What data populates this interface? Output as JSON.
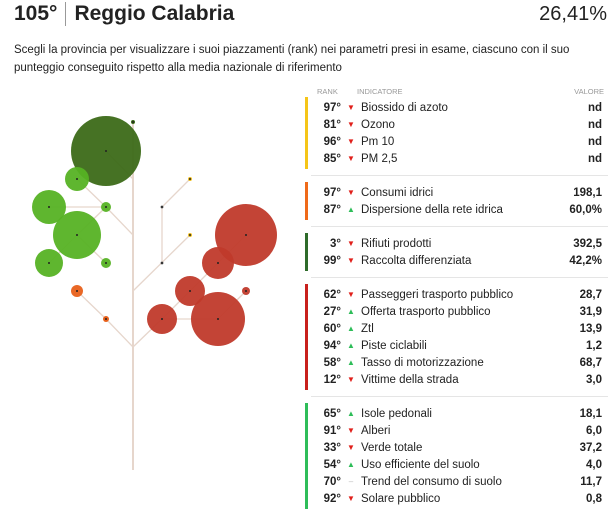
{
  "header": {
    "rank": "105°",
    "city": "Reggio Calabria",
    "score": "26,41%"
  },
  "description": "Scegli la provincia per visualizzare i suoi piazzamenti (rank) nei parametri presi in esame, ciascuno con il suo punteggio conseguito rispetto alla media nazionale di riferimento",
  "table": {
    "col_rank": "RANK",
    "col_indicator": "INDICATORE",
    "col_value": "VALORE",
    "groups": [
      {
        "color": "#f5c518",
        "rows": [
          {
            "rank": "97°",
            "trend": "down",
            "label": "Biossido di azoto",
            "value": "nd"
          },
          {
            "rank": "81°",
            "trend": "down",
            "label": "Ozono",
            "value": "nd"
          },
          {
            "rank": "96°",
            "trend": "down",
            "label": "Pm 10",
            "value": "nd"
          },
          {
            "rank": "85°",
            "trend": "down",
            "label": "PM 2,5",
            "value": "nd"
          }
        ]
      },
      {
        "color": "#ef6a1a",
        "rows": [
          {
            "rank": "97°",
            "trend": "down",
            "label": "Consumi idrici",
            "value": "198,1"
          },
          {
            "rank": "87°",
            "trend": "up",
            "label": "Dispersione della rete idrica",
            "value": "60,0%"
          }
        ]
      },
      {
        "color": "#2e6b2a",
        "rows": [
          {
            "rank": "3°",
            "trend": "down",
            "label": "Rifiuti prodotti",
            "value": "392,5"
          },
          {
            "rank": "99°",
            "trend": "down",
            "label": "Raccolta differenziata",
            "value": "42,2%"
          }
        ]
      },
      {
        "color": "#c8201d",
        "rows": [
          {
            "rank": "62°",
            "trend": "down",
            "label": "Passeggeri trasporto pubblico",
            "value": "28,7"
          },
          {
            "rank": "27°",
            "trend": "up",
            "label": "Offerta trasporto pubblico",
            "value": "31,9"
          },
          {
            "rank": "60°",
            "trend": "up",
            "label": "Ztl",
            "value": "13,9"
          },
          {
            "rank": "94°",
            "trend": "up",
            "label": "Piste ciclabili",
            "value": "1,2"
          },
          {
            "rank": "58°",
            "trend": "up",
            "label": "Tasso di motorizzazione",
            "value": "68,7"
          },
          {
            "rank": "12°",
            "trend": "down",
            "label": "Vittime della strada",
            "value": "3,0"
          }
        ]
      },
      {
        "color": "#2ebd59",
        "rows": [
          {
            "rank": "65°",
            "trend": "up",
            "label": "Isole pedonali",
            "value": "18,1"
          },
          {
            "rank": "91°",
            "trend": "down",
            "label": "Alberi",
            "value": "6,0"
          },
          {
            "rank": "33°",
            "trend": "down",
            "label": "Verde totale",
            "value": "37,2"
          },
          {
            "rank": "54°",
            "trend": "up",
            "label": "Uso efficiente del suolo",
            "value": "4,0"
          },
          {
            "rank": "70°",
            "trend": "flat",
            "label": "Trend del consumo di suolo",
            "value": "11,7"
          },
          {
            "rank": "92°",
            "trend": "down",
            "label": "Solare pubblico",
            "value": "0,8"
          }
        ]
      }
    ]
  },
  "colors": {
    "dark_green": "#3c6a18",
    "green": "#56b224",
    "orange": "#e8601a",
    "red": "#c03a2b",
    "yellow": "#f0c020"
  }
}
